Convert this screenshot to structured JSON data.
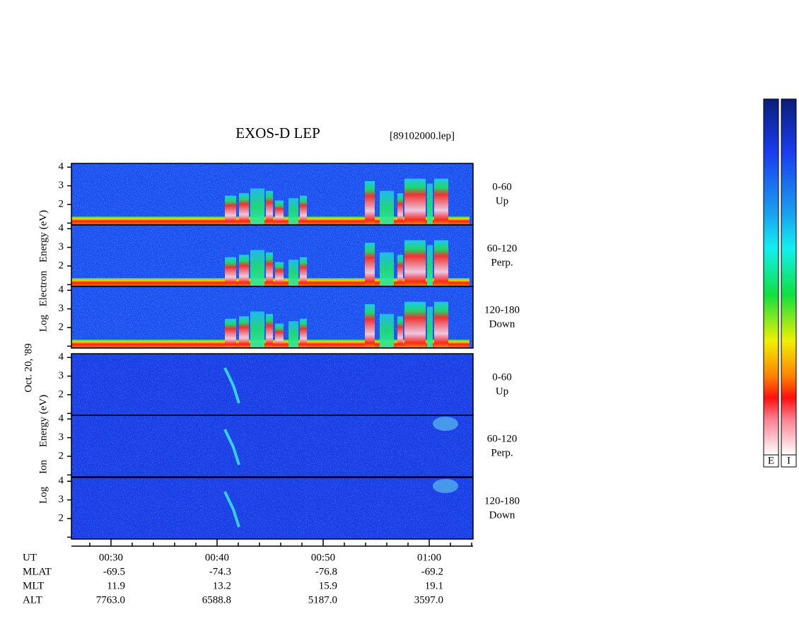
{
  "title": "EXOS-D LEP",
  "file": "[89102000.lep]",
  "date": "Oct. 20, '89",
  "electron_axis_label": [
    "Log",
    "Electron",
    "Energy (eV)"
  ],
  "ion_axis_label": [
    "Log",
    "Ion",
    "Energy (eV)"
  ],
  "panels": [
    {
      "angle": "0-60",
      "direction": "Up"
    },
    {
      "angle": "60-120",
      "direction": "Perp."
    },
    {
      "angle": "120-180",
      "direction": "Down"
    }
  ],
  "energy_axis": {
    "ylim": [
      0.9,
      4.2
    ],
    "yticks": [
      2,
      3,
      4
    ],
    "minor_yticks": [
      1
    ]
  },
  "time_axis": {
    "xlim": [
      26.27,
      64.13
    ],
    "xticks": [
      {
        "value": 30,
        "label": "00:30"
      },
      {
        "value": 40,
        "label": "00:40"
      },
      {
        "value": 50,
        "label": "00:50"
      },
      {
        "value": 60,
        "label": "01:00"
      }
    ],
    "minor_xticks": [
      28,
      32,
      34,
      36,
      38,
      42,
      44,
      46,
      48,
      52,
      54,
      56,
      58,
      62,
      64
    ]
  },
  "orbit": {
    "row_labels": [
      "UT",
      "MLAT",
      "MLT",
      "ALT"
    ],
    "rows": [
      [
        "-69.5",
        "-74.3",
        "-76.8",
        "-69.2"
      ],
      [
        "11.9",
        "13.2",
        "15.9",
        "19.1"
      ],
      [
        "7763.0",
        "6588.8",
        "5187.0",
        "3597.0"
      ]
    ]
  },
  "colorbars": [
    "E",
    "I"
  ]
}
